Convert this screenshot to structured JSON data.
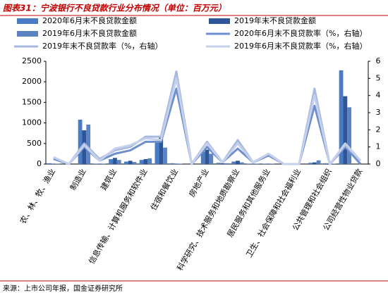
{
  "chart_data": {
    "type": "bar",
    "title": "图表31：宁波银行不良贷款行业分布情况（单位：百万元）",
    "source": "来源：上市公司年报，国金证券研究所",
    "categories": [
      "农、林、牧、渔业",
      null,
      "制造业",
      null,
      "建筑业",
      null,
      "信息传输、计算机服务和软件业",
      null,
      "住宿和餐饮业",
      null,
      "房地产业",
      null,
      "科学研究、技术服务和地质勘察业",
      null,
      "居民服务和其他服务业",
      null,
      "卫生、社会保障和社会福利业",
      null,
      "公共管理和社会组织",
      null,
      "公司经营性物业贷款"
    ],
    "series": [
      {
        "name": "2020年6月末不良贷款金额",
        "color": "#4a7cc3",
        "values": [
          20,
          0,
          1080,
          10,
          120,
          60,
          100,
          550,
          20,
          0,
          300,
          30,
          60,
          10,
          10,
          0,
          0,
          30,
          20,
          2280,
          0
        ]
      },
      {
        "name": "2019年末不良贷款金额",
        "color": "#2e5597",
        "values": [
          10,
          0,
          820,
          10,
          150,
          80,
          120,
          650,
          10,
          0,
          350,
          20,
          80,
          10,
          10,
          0,
          0,
          40,
          10,
          1650,
          0
        ]
      },
      {
        "name": "2019年6月末不良贷款金额",
        "color": "#5b83c4",
        "values": [
          10,
          0,
          960,
          10,
          100,
          50,
          140,
          400,
          10,
          0,
          250,
          20,
          40,
          10,
          10,
          0,
          0,
          90,
          10,
          1380,
          0
        ]
      },
      {
        "name": "2020年6月末不良贷款率（%，右轴）",
        "color": "#6f8fcc",
        "axis": "y2",
        "type": "line",
        "values": [
          0.3,
          0,
          1.0,
          0.2,
          0.6,
          0.8,
          1.3,
          1.3,
          4.4,
          0,
          1.0,
          0.1,
          0.9,
          0.1,
          0.5,
          0,
          0,
          3.4,
          0,
          1.0,
          0
        ]
      },
      {
        "name": "2019年末不良贷款率（%，右轴）",
        "color": "#a9b8e0",
        "axis": "y2",
        "type": "line",
        "values": [
          0.4,
          0,
          1.2,
          0.3,
          0.8,
          1.0,
          1.6,
          1.6,
          5.4,
          0,
          1.3,
          0.1,
          1.4,
          0.1,
          0.6,
          0,
          0,
          4.4,
          0,
          1.1,
          0.2
        ]
      },
      {
        "name": "2019年6月末不良贷款率（%，右轴）",
        "color": "#c5d0ea",
        "axis": "y2",
        "type": "line",
        "values": [
          0.4,
          0,
          1.1,
          0.2,
          0.9,
          1.1,
          1.5,
          1.4,
          5.0,
          0,
          1.2,
          0.1,
          1.2,
          0.1,
          0.6,
          0,
          0,
          4.0,
          0,
          1.2,
          0.2
        ]
      }
    ],
    "ylim": [
      0,
      2500
    ],
    "yticks": [
      0,
      500,
      1000,
      1500,
      2000,
      2500
    ],
    "y2lim": [
      0,
      6
    ],
    "y2ticks": [
      0,
      1,
      2,
      3,
      4,
      5,
      6
    ]
  }
}
